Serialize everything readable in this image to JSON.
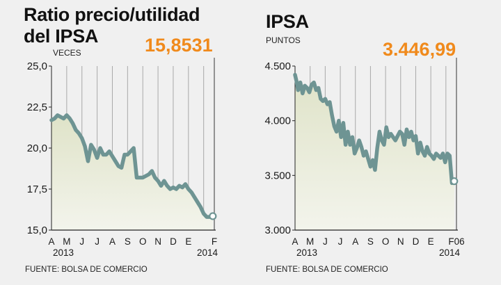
{
  "colors": {
    "line": "#6e9493",
    "fill_top": "#dfe3c8",
    "fill_bottom": "#f3f4ec",
    "accent": "#f08a1c",
    "grid": "#a8a8a8",
    "bg": "#f0f0f0"
  },
  "left": {
    "title_line1": "Ratio precio/utilidad",
    "title_line2": "del IPSA",
    "unit": "VECES",
    "last_value": "15,8531",
    "source": "FUENTE: BOLSA DE COMERCIO",
    "year_start": "2013",
    "year_end": "2014"
  },
  "right": {
    "title": "IPSA",
    "unit": "PUNTOS",
    "last_value": "3.446,99",
    "source": "FUENTE: BOLSA DE COMERCIO",
    "year_start": "2013",
    "year_end": "2014"
  },
  "chart_data": [
    {
      "type": "area",
      "ylim": [
        15.0,
        25.0
      ],
      "yticks": [
        "25,0",
        "22,5",
        "20,0",
        "17,5",
        "15,0"
      ],
      "ytick_values": [
        25.0,
        22.5,
        20.0,
        17.5,
        15.0
      ],
      "xticks": [
        "A",
        "M",
        "J",
        "J",
        "A",
        "S",
        "O",
        "N",
        "D",
        "E",
        "F"
      ],
      "x_range": [
        0,
        10.7
      ],
      "series": [
        {
          "x": [
            0,
            0.2,
            0.4,
            0.6,
            0.8,
            1.0,
            1.2,
            1.4,
            1.6,
            1.8,
            2.0,
            2.2,
            2.4,
            2.6,
            2.8,
            3.0,
            3.2,
            3.4,
            3.6,
            3.8,
            4.0,
            4.2,
            4.4,
            4.6,
            4.8,
            5.0,
            5.2,
            5.4,
            5.6,
            5.8,
            6.0,
            6.2,
            6.4,
            6.6,
            6.8,
            7.0,
            7.2,
            7.4,
            7.6,
            7.8,
            8.0,
            8.2,
            8.4,
            8.6,
            8.8,
            9.0,
            9.2,
            9.4,
            9.6,
            9.8,
            10.0,
            10.2,
            10.4,
            10.6
          ],
          "y": [
            21.7,
            21.8,
            22.0,
            21.9,
            21.8,
            22.0,
            21.8,
            21.5,
            21.1,
            20.9,
            20.6,
            20.1,
            19.2,
            20.2,
            19.9,
            19.4,
            20.0,
            19.6,
            19.6,
            19.8,
            19.5,
            19.2,
            18.9,
            18.8,
            19.6,
            19.6,
            19.8,
            20.0,
            18.2,
            18.2,
            18.2,
            18.3,
            18.4,
            18.6,
            18.2,
            18.0,
            17.7,
            18.0,
            17.7,
            17.5,
            17.6,
            17.5,
            17.7,
            17.6,
            17.8,
            17.5,
            17.3,
            17.0,
            16.7,
            16.4,
            16.0,
            15.8,
            15.8,
            15.85
          ]
        }
      ]
    },
    {
      "type": "area",
      "ylim": [
        3000,
        4500
      ],
      "yticks": [
        "4.500",
        "4.000",
        "3.500",
        "3.000"
      ],
      "ytick_values": [
        4500,
        4000,
        3500,
        3000
      ],
      "xticks": [
        "A",
        "M",
        "J",
        "J",
        "A",
        "S",
        "O",
        "N",
        "D",
        "E",
        "F06"
      ],
      "x_range": [
        0,
        10.7
      ],
      "series": [
        {
          "x": [
            0,
            0.1,
            0.2,
            0.35,
            0.5,
            0.65,
            0.8,
            0.95,
            1.1,
            1.25,
            1.4,
            1.55,
            1.7,
            1.85,
            2.0,
            2.15,
            2.3,
            2.45,
            2.6,
            2.75,
            2.9,
            3.05,
            3.2,
            3.35,
            3.5,
            3.65,
            3.8,
            3.95,
            4.1,
            4.25,
            4.4,
            4.55,
            4.7,
            4.85,
            5.0,
            5.15,
            5.3,
            5.45,
            5.6,
            5.75,
            5.9,
            6.05,
            6.2,
            6.35,
            6.5,
            6.65,
            6.8,
            6.95,
            7.1,
            7.25,
            7.4,
            7.55,
            7.7,
            7.85,
            8.0,
            8.15,
            8.3,
            8.45,
            8.6,
            8.75,
            8.9,
            9.05,
            9.2,
            9.35,
            9.5,
            9.65,
            9.8,
            9.95,
            10.1,
            10.25,
            10.4,
            10.55
          ],
          "y": [
            4420,
            4360,
            4280,
            4350,
            4250,
            4320,
            4300,
            4260,
            4330,
            4350,
            4280,
            4300,
            4200,
            4180,
            4200,
            4150,
            4170,
            4050,
            3950,
            3900,
            4000,
            3850,
            3980,
            3780,
            3900,
            3780,
            3850,
            3700,
            3750,
            3820,
            3760,
            3680,
            3720,
            3650,
            3580,
            3640,
            3550,
            3750,
            3900,
            3820,
            3780,
            3940,
            3850,
            3880,
            3850,
            3820,
            3860,
            3900,
            3880,
            3780,
            3920,
            3850,
            3900,
            3820,
            3860,
            3700,
            3800,
            3720,
            3680,
            3760,
            3700,
            3680,
            3650,
            3700,
            3680,
            3660,
            3700,
            3620,
            3700,
            3680,
            3430,
            3447
          ]
        }
      ]
    }
  ]
}
